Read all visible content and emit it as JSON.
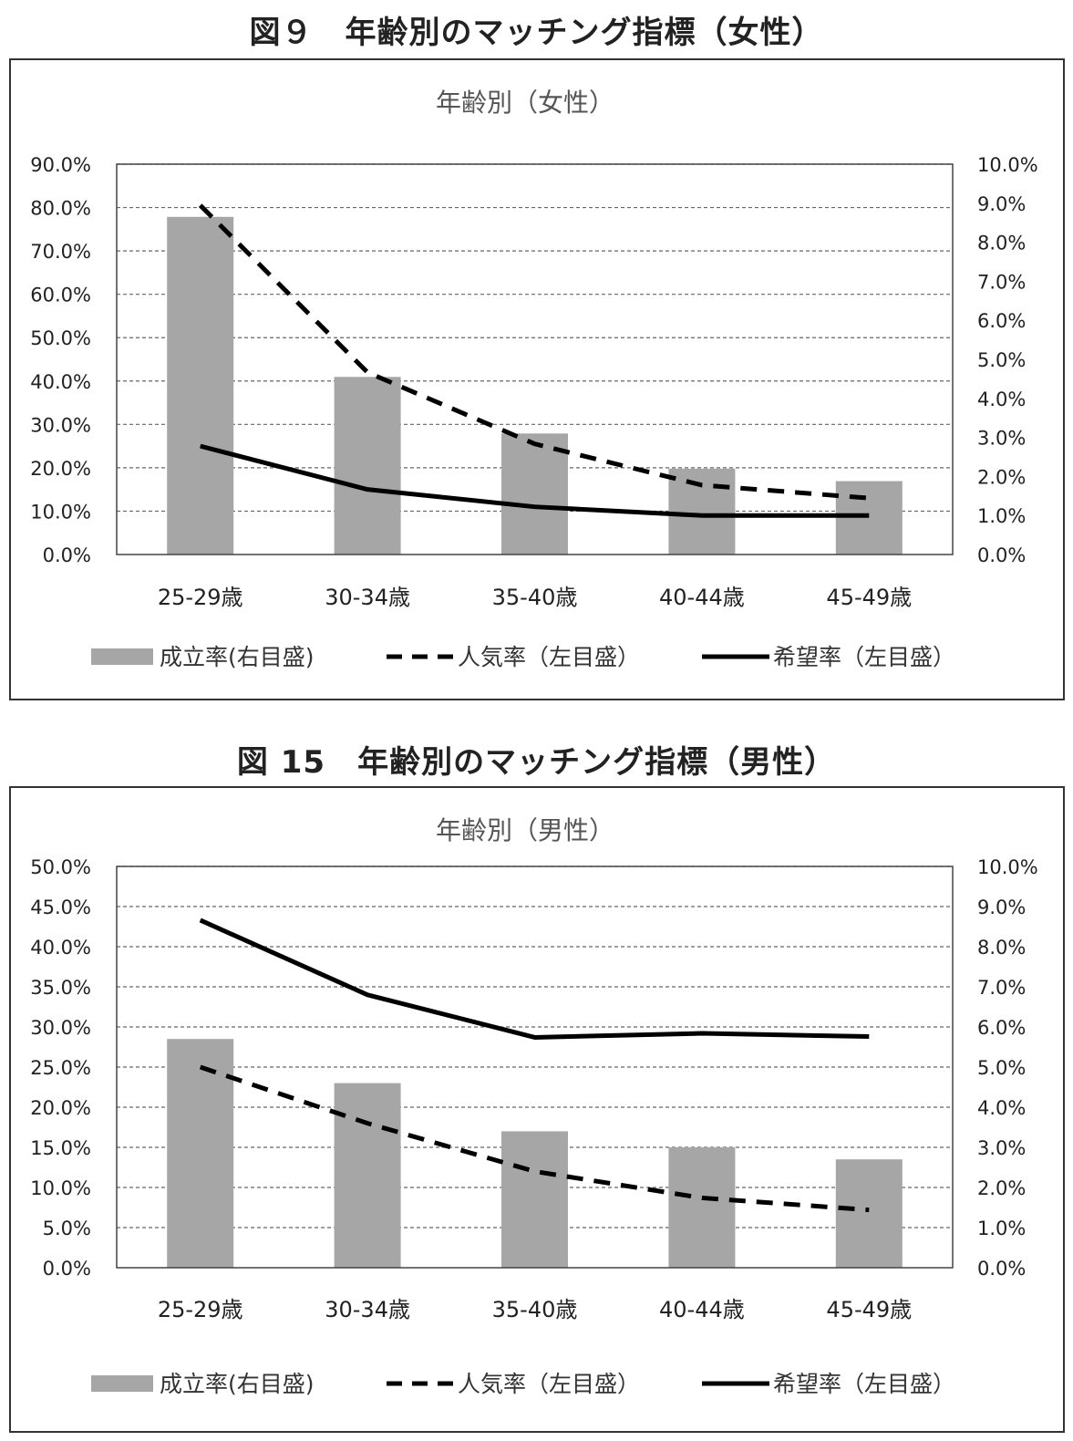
{
  "figures": [
    {
      "caption": "図９　年齢別のマッチング指標（女性）",
      "chart_data": {
        "type": "bar",
        "title": "年齢別（女性）",
        "categories": [
          "25-29歳",
          "30-34歳",
          "35-40歳",
          "40-44歳",
          "45-49歳"
        ],
        "left_axis": {
          "ylim": [
            0,
            90
          ],
          "ticks": [
            "0.0%",
            "10.0%",
            "20.0%",
            "30.0%",
            "40.0%",
            "50.0%",
            "60.0%",
            "70.0%",
            "80.0%",
            "90.0%"
          ]
        },
        "right_axis": {
          "ylim": [
            0,
            10
          ],
          "ticks": [
            "0.0%",
            "1.0%",
            "2.0%",
            "3.0%",
            "4.0%",
            "5.0%",
            "6.0%",
            "7.0%",
            "8.0%",
            "9.0%",
            "10.0%"
          ]
        },
        "series": [
          {
            "name": "成立率(右目盛)",
            "kind": "bar",
            "axis": "right",
            "color": "#a6a6a6",
            "values": [
              8.65,
              4.55,
              3.1,
              2.2,
              1.88
            ]
          },
          {
            "name": "人気率（左目盛）",
            "kind": "dashed-line",
            "axis": "left",
            "color": "#000000",
            "values": [
              80.5,
              42.0,
              25.5,
              16.0,
              13.0
            ]
          },
          {
            "name": "希望率（左目盛）",
            "kind": "solid-line",
            "axis": "left",
            "color": "#000000",
            "values": [
              25.0,
              15.0,
              11.0,
              9.0,
              9.0
            ]
          }
        ],
        "grid": true
      }
    },
    {
      "caption": "図 15　年齢別のマッチング指標（男性）",
      "chart_data": {
        "type": "bar",
        "title": "年齢別（男性）",
        "categories": [
          "25-29歳",
          "30-34歳",
          "35-40歳",
          "40-44歳",
          "45-49歳"
        ],
        "left_axis": {
          "ylim": [
            0,
            50
          ],
          "ticks": [
            "0.0%",
            "5.0%",
            "10.0%",
            "15.0%",
            "20.0%",
            "25.0%",
            "30.0%",
            "35.0%",
            "40.0%",
            "45.0%",
            "50.0%"
          ]
        },
        "right_axis": {
          "ylim": [
            0,
            10
          ],
          "ticks": [
            "0.0%",
            "1.0%",
            "2.0%",
            "3.0%",
            "4.0%",
            "5.0%",
            "6.0%",
            "7.0%",
            "8.0%",
            "9.0%",
            "10.0%"
          ]
        },
        "series": [
          {
            "name": "成立率(右目盛)",
            "kind": "bar",
            "axis": "right",
            "color": "#a6a6a6",
            "values": [
              5.7,
              4.6,
              3.4,
              3.0,
              2.7
            ]
          },
          {
            "name": "人気率（左目盛）",
            "kind": "dashed-line",
            "axis": "left",
            "color": "#000000",
            "values": [
              25.0,
              18.0,
              12.0,
              8.7,
              7.2
            ]
          },
          {
            "name": "希望率（左目盛）",
            "kind": "solid-line",
            "axis": "left",
            "color": "#000000",
            "values": [
              43.3,
              34.0,
              28.7,
              29.2,
              28.8
            ]
          }
        ],
        "grid": true
      }
    }
  ]
}
